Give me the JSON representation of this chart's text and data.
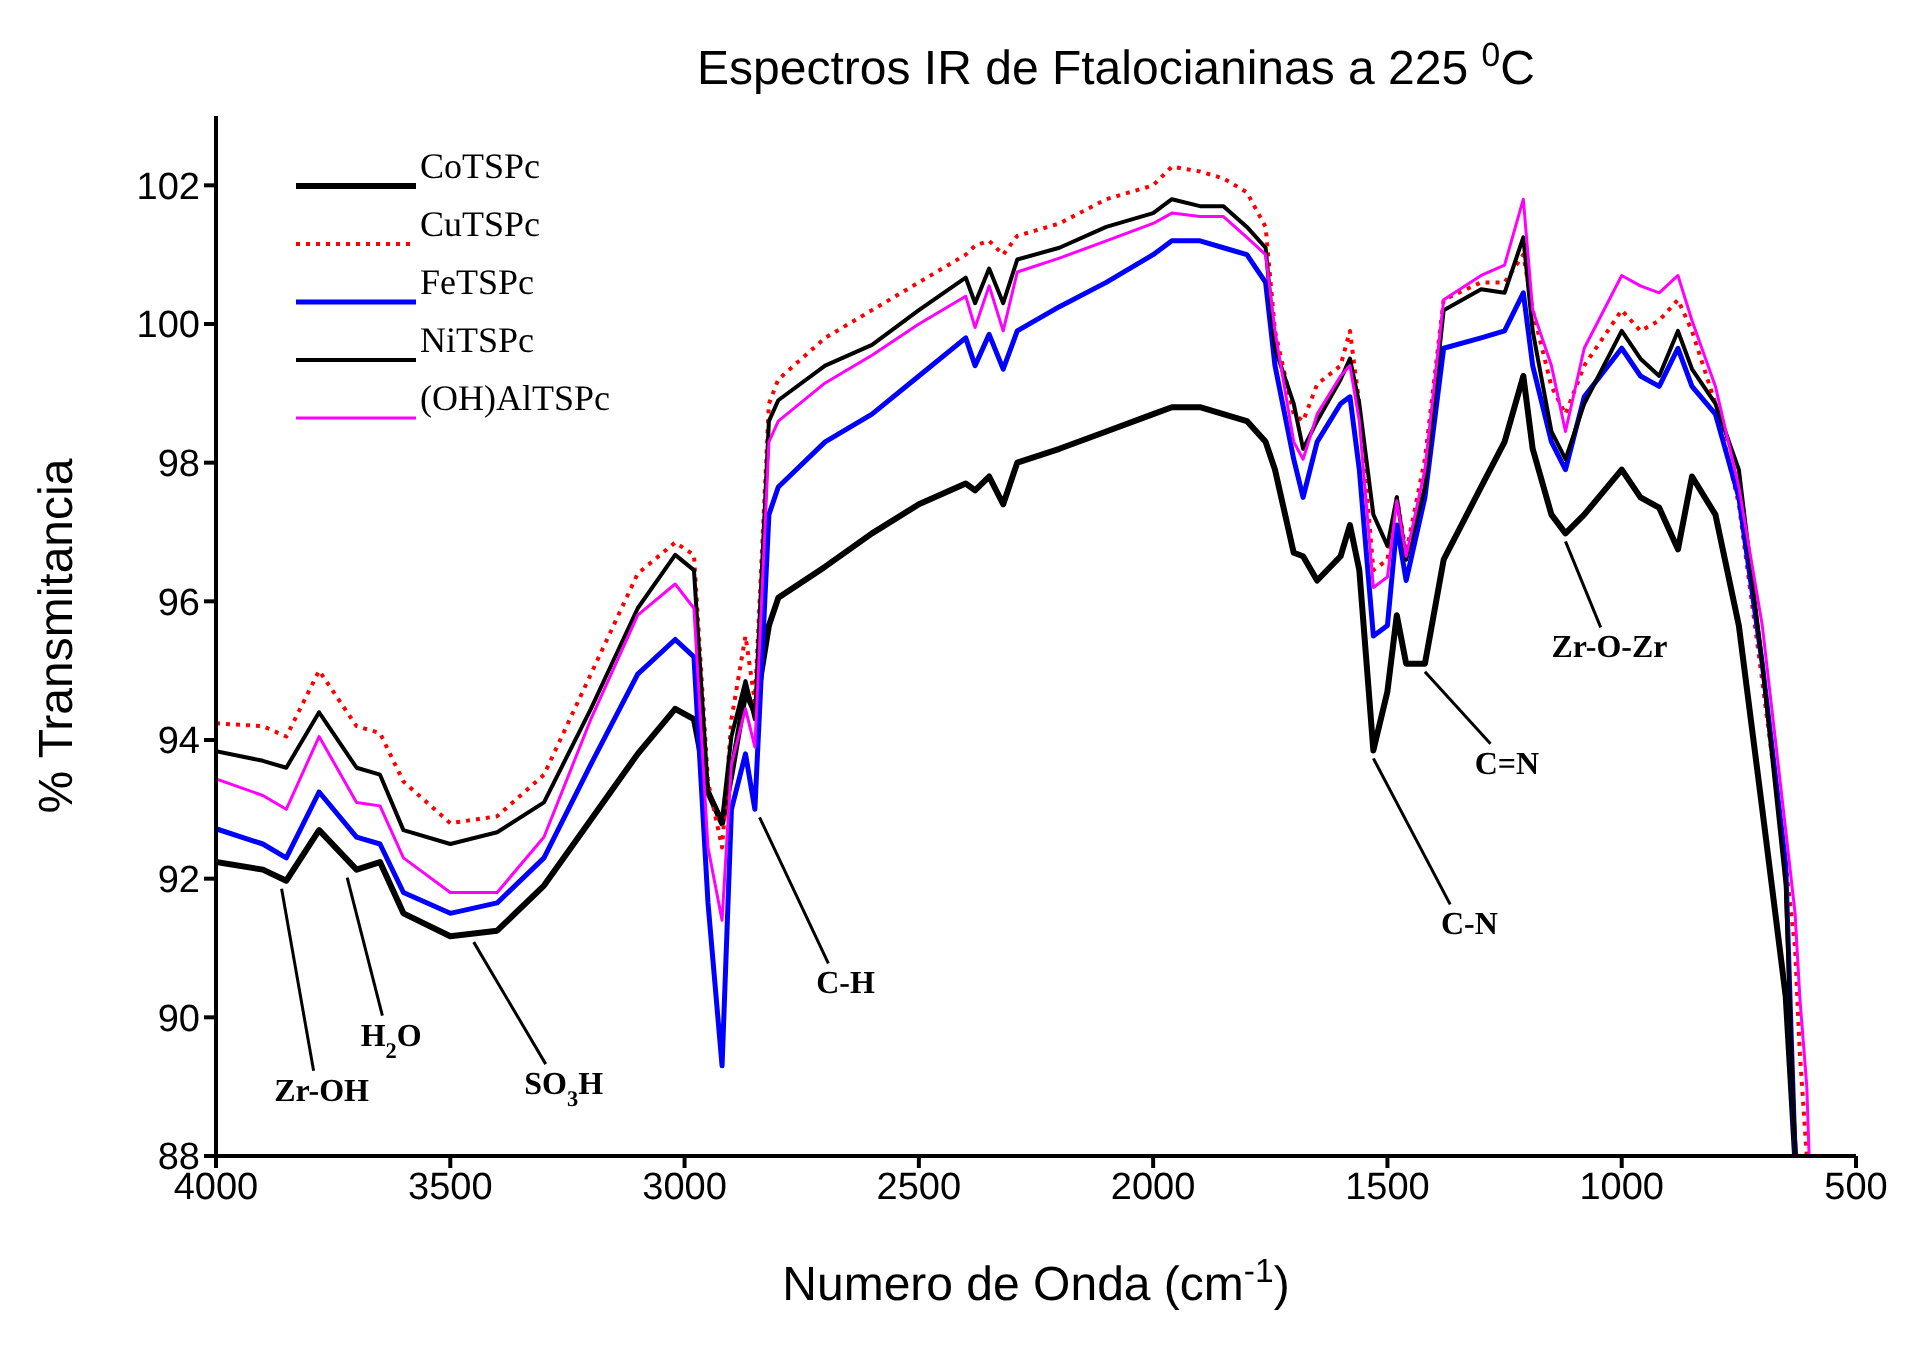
{
  "chart_data": {
    "type": "line",
    "title": "Espectros IR de Ftalocianinas a 225 $^{0}$C",
    "xlabel": "Numero de Onda (cm$^{-1}$)",
    "ylabel": "% Transmitancia",
    "x": [
      4000,
      3900,
      3850,
      3780,
      3700,
      3650,
      3600,
      3500,
      3400,
      3300,
      3200,
      3100,
      3020,
      2980,
      2950,
      2920,
      2900,
      2870,
      2850,
      2820,
      2800,
      2700,
      2600,
      2500,
      2400,
      2380,
      2350,
      2320,
      2290,
      2200,
      2100,
      2000,
      1960,
      1900,
      1850,
      1800,
      1760,
      1740,
      1700,
      1680,
      1650,
      1600,
      1580,
      1560,
      1530,
      1500,
      1480,
      1460,
      1420,
      1380,
      1300,
      1250,
      1210,
      1190,
      1150,
      1120,
      1080,
      1000,
      960,
      920,
      880,
      850,
      800,
      750,
      700,
      650,
      630,
      620,
      605,
      600
    ],
    "series": [
      {
        "name": "CoTSPc",
        "color": "#000000",
        "values": [
          92.24,
          92.13,
          91.97,
          92.7,
          92.13,
          92.24,
          91.5,
          91.17,
          91.25,
          91.9,
          92.85,
          93.8,
          94.45,
          94.3,
          93.25,
          92.8,
          93.5,
          94.7,
          94.4,
          95.65,
          96.05,
          96.5,
          96.98,
          97.4,
          97.7,
          97.6,
          97.8,
          97.4,
          98.0,
          98.2,
          98.45,
          98.7,
          98.8,
          98.8,
          98.7,
          98.6,
          98.3,
          97.9,
          96.7,
          96.65,
          96.3,
          96.65,
          97.1,
          96.45,
          93.85,
          94.7,
          95.8,
          95.1,
          95.1,
          96.6,
          97.65,
          98.3,
          99.25,
          98.2,
          97.25,
          96.98,
          97.25,
          97.9,
          97.5,
          97.35,
          96.75,
          97.8,
          97.25,
          95.65,
          93.0,
          90.3,
          88.0,
          null,
          null,
          null
        ]
      },
      {
        "name": "CuTSPc",
        "color": "#ff0000",
        "line_style": "dotted",
        "values": [
          94.24,
          94.2,
          94.05,
          95.0,
          94.2,
          94.1,
          93.4,
          92.8,
          92.9,
          93.5,
          94.95,
          96.4,
          96.85,
          96.67,
          93.4,
          92.45,
          94.3,
          95.5,
          94.55,
          98.85,
          99.2,
          99.8,
          100.2,
          100.6,
          101.0,
          101.13,
          101.2,
          101.0,
          101.27,
          101.45,
          101.8,
          102.0,
          102.27,
          102.2,
          102.1,
          101.9,
          101.4,
          99.9,
          98.7,
          98.6,
          99.13,
          99.4,
          99.9,
          98.85,
          96.45,
          96.6,
          97.5,
          96.7,
          98.05,
          100.35,
          100.6,
          100.6,
          101.0,
          100.2,
          99.1,
          98.7,
          99.4,
          100.2,
          99.9,
          100.05,
          100.35,
          99.9,
          98.85,
          97.4,
          94.85,
          92.2,
          91.0,
          89.5,
          88.0,
          null
        ]
      },
      {
        "name": "FeTSPc",
        "color": "#0000ff",
        "values": [
          92.72,
          92.5,
          92.3,
          93.25,
          92.6,
          92.5,
          91.8,
          91.5,
          91.65,
          92.3,
          93.65,
          94.95,
          95.45,
          95.2,
          91.65,
          89.3,
          93.0,
          93.8,
          93.0,
          97.25,
          97.65,
          98.3,
          98.7,
          99.25,
          99.8,
          99.4,
          99.85,
          99.35,
          99.9,
          100.25,
          100.6,
          101.0,
          101.2,
          101.2,
          101.1,
          101.0,
          100.6,
          99.4,
          98.05,
          97.5,
          98.3,
          98.85,
          98.95,
          97.9,
          95.5,
          95.65,
          97.1,
          96.3,
          97.5,
          99.65,
          99.8,
          99.9,
          100.45,
          99.4,
          98.3,
          97.9,
          98.95,
          99.65,
          99.25,
          99.1,
          99.65,
          99.1,
          98.7,
          97.5,
          95.1,
          92.2,
          88.0,
          null,
          null,
          null
        ]
      },
      {
        "name": "NiTSPc",
        "color": "#000000",
        "values": [
          93.84,
          93.7,
          93.6,
          94.4,
          93.6,
          93.5,
          92.7,
          92.5,
          92.67,
          93.1,
          94.45,
          95.9,
          96.67,
          96.45,
          93.25,
          92.85,
          94.05,
          94.85,
          94.3,
          98.6,
          98.9,
          99.4,
          99.7,
          100.2,
          100.67,
          100.3,
          100.8,
          100.3,
          100.93,
          101.1,
          101.4,
          101.6,
          101.8,
          101.7,
          101.7,
          101.4,
          101.1,
          99.65,
          98.85,
          98.2,
          98.6,
          99.2,
          99.5,
          98.85,
          97.25,
          96.8,
          97.5,
          96.6,
          97.65,
          100.2,
          100.5,
          100.45,
          101.25,
          99.9,
          98.45,
          98.05,
          98.85,
          99.9,
          99.5,
          99.25,
          99.9,
          99.35,
          98.85,
          97.9,
          95.1,
          91.9,
          88.0,
          null,
          null,
          null
        ]
      },
      {
        "name": "(OH)AlTSPc",
        "color": "#ff00ff",
        "values": [
          93.44,
          93.2,
          93.0,
          94.05,
          93.1,
          93.05,
          92.3,
          91.8,
          91.8,
          92.6,
          94.3,
          95.8,
          96.25,
          95.9,
          92.45,
          91.4,
          93.65,
          94.45,
          93.9,
          98.3,
          98.6,
          99.15,
          99.55,
          100.0,
          100.4,
          99.95,
          100.55,
          99.9,
          100.75,
          100.95,
          101.2,
          101.45,
          101.6,
          101.55,
          101.55,
          101.25,
          101.0,
          99.9,
          98.3,
          98.05,
          98.7,
          99.25,
          99.4,
          98.6,
          96.2,
          96.35,
          97.45,
          96.65,
          97.9,
          100.35,
          100.7,
          100.85,
          101.8,
          100.2,
          99.4,
          98.45,
          99.65,
          100.7,
          100.55,
          100.45,
          100.7,
          100.05,
          99.1,
          97.65,
          95.65,
          92.7,
          91.5,
          90.3,
          89.0,
          88.0
        ]
      }
    ],
    "xlim": [
      4000,
      500
    ],
    "xticks": [
      4000,
      3500,
      3000,
      2500,
      2000,
      1500,
      1000,
      500
    ],
    "ylim": [
      88,
      103
    ],
    "yticks": [
      88,
      90,
      92,
      94,
      96,
      98,
      100,
      102
    ],
    "marker": "none",
    "legend": "top left",
    "annotations": [
      {
        "text": "Zr-OH",
        "x": 3860,
        "y": 91.97
      },
      {
        "text": "H$_{2}$O",
        "x": 3720,
        "y": 92.13
      },
      {
        "text": "SO$_{3}$H",
        "x": 3450,
        "y": 91.2
      },
      {
        "text": "C-H",
        "x": 2840,
        "y": 93.0
      },
      {
        "text": "C-N",
        "x": 1530,
        "y": 93.85
      },
      {
        "text": "C=N",
        "x": 1420,
        "y": 95.1
      },
      {
        "text": "Zr-O-Zr",
        "x": 1120,
        "y": 96.98
      }
    ]
  }
}
